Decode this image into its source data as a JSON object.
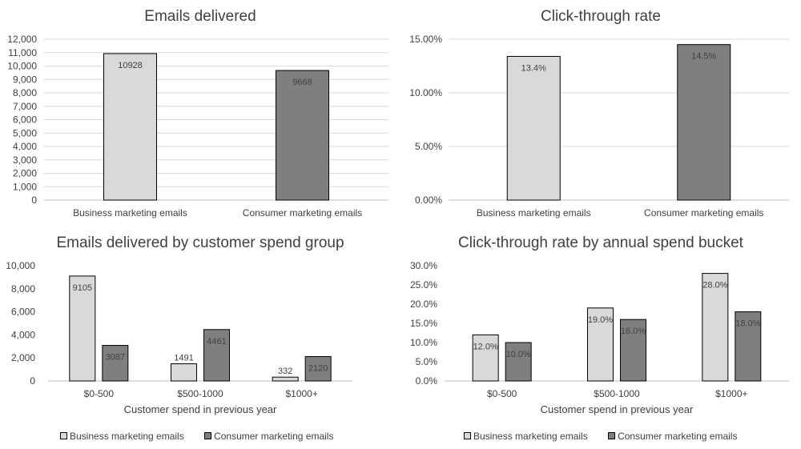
{
  "chart_data": [
    {
      "id": "c1",
      "type": "bar",
      "title": "Emails delivered",
      "categories": [
        "Business marketing emails",
        "Consumer marketing emails"
      ],
      "series": [
        {
          "name": "Emails delivered",
          "values": [
            10928,
            9668
          ],
          "value_labels": [
            "10928",
            "9668"
          ],
          "colors": [
            "#d9d9d9",
            "#7f7f7f"
          ]
        }
      ],
      "ylim": [
        0,
        12000
      ],
      "yticks": [
        0,
        1000,
        2000,
        3000,
        4000,
        5000,
        6000,
        7000,
        8000,
        9000,
        10000,
        11000,
        12000
      ],
      "ytick_labels": [
        "0",
        "1,000",
        "2,000",
        "3,000",
        "4,000",
        "5,000",
        "6,000",
        "7,000",
        "8,000",
        "9,000",
        "10,000",
        "11,000",
        "12,000"
      ],
      "xlabel": "",
      "ylabel": "",
      "grid": true
    },
    {
      "id": "c2",
      "type": "bar",
      "title": "Click-through rate",
      "categories": [
        "Business marketing emails",
        "Consumer marketing emails"
      ],
      "series": [
        {
          "name": "Click-through rate",
          "values": [
            13.4,
            14.5
          ],
          "value_labels": [
            "13.4%",
            "14.5%"
          ],
          "colors": [
            "#d9d9d9",
            "#7f7f7f"
          ]
        }
      ],
      "ylim": [
        0,
        15
      ],
      "yticks": [
        0,
        5,
        10,
        15
      ],
      "ytick_labels": [
        "0.00%",
        "5.00%",
        "10.00%",
        "15.00%"
      ],
      "xlabel": "",
      "ylabel": "",
      "grid": true
    },
    {
      "id": "c3",
      "type": "bar",
      "title": "Emails delivered by customer spend group",
      "categories": [
        "$0-500",
        "$500-1000",
        "$1000+"
      ],
      "series": [
        {
          "name": "Business marketing emails",
          "color": "#d9d9d9",
          "values": [
            9105,
            1491,
            332
          ],
          "value_labels": [
            "9105",
            "1491",
            "332"
          ]
        },
        {
          "name": "Consumer marketing emails",
          "color": "#7f7f7f",
          "values": [
            3087,
            4461,
            2120
          ],
          "value_labels": [
            "3087",
            "4461",
            "2120"
          ]
        }
      ],
      "ylim": [
        0,
        10000
      ],
      "yticks": [
        0,
        2000,
        4000,
        6000,
        8000,
        10000
      ],
      "ytick_labels": [
        "0",
        "2,000",
        "4,000",
        "6,000",
        "8,000",
        "10,000"
      ],
      "xlabel": "Customer spend  in previous  year",
      "ylabel": "",
      "grid": false,
      "legend": "bottom"
    },
    {
      "id": "c4",
      "type": "bar",
      "title": "Click-through rate by annual  spend bucket",
      "categories": [
        "$0-500",
        "$500-1000",
        "$1000+"
      ],
      "series": [
        {
          "name": "Business marketing emails",
          "color": "#d9d9d9",
          "values": [
            12.0,
            19.0,
            28.0
          ],
          "value_labels": [
            "12.0%",
            "19.0%",
            "28.0%"
          ]
        },
        {
          "name": "Consumer marketing emails",
          "color": "#7f7f7f",
          "values": [
            10.0,
            16.0,
            18.0
          ],
          "value_labels": [
            "10.0%",
            "16.0%",
            "18.0%"
          ]
        }
      ],
      "ylim": [
        0,
        30
      ],
      "yticks": [
        0,
        5,
        10,
        15,
        20,
        25,
        30
      ],
      "ytick_labels": [
        "0.0%",
        "5.0%",
        "10.0%",
        "15.0%",
        "20.0%",
        "25.0%",
        "30.0%"
      ],
      "xlabel": "Customer spend  in previous  year",
      "ylabel": "",
      "grid": false,
      "legend": "bottom"
    }
  ]
}
